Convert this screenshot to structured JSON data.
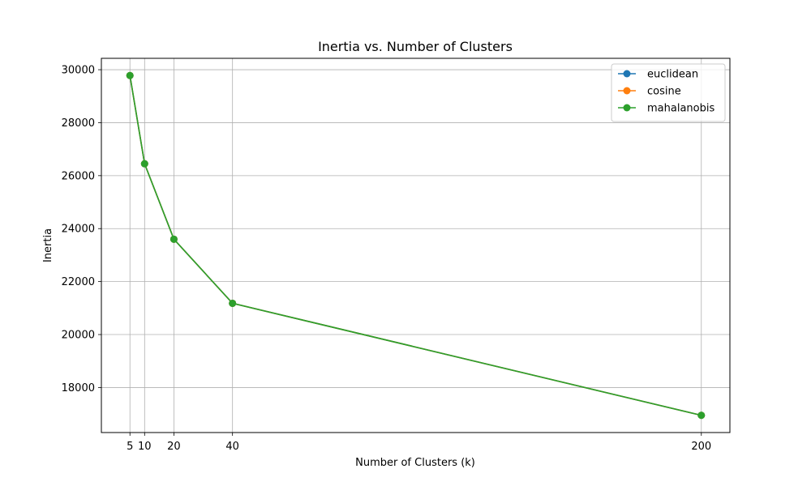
{
  "chart_data": {
    "type": "line",
    "title": "Inertia vs. Number of Clusters",
    "xlabel": "Number of Clusters (k)",
    "ylabel": "Inertia",
    "x": [
      5,
      10,
      20,
      40,
      200
    ],
    "xticks": [
      5,
      10,
      20,
      40,
      200
    ],
    "yticks": [
      18000,
      20000,
      22000,
      24000,
      26000,
      28000,
      30000
    ],
    "xlim": [
      -4.75,
      209.75
    ],
    "ylim": [
      16300,
      30430
    ],
    "grid": true,
    "legend_position": "top-right",
    "series": [
      {
        "name": "euclidean",
        "color": "#1f77b4",
        "marker": "circle",
        "values": [
          29780,
          26450,
          23600,
          21180,
          16950
        ]
      },
      {
        "name": "cosine",
        "color": "#ff7f0e",
        "marker": "circle",
        "values": [
          29780,
          26450,
          23600,
          21180,
          16950
        ]
      },
      {
        "name": "mahalanobis",
        "color": "#2ca02c",
        "marker": "circle",
        "values": [
          29780,
          26450,
          23600,
          21180,
          16950
        ]
      }
    ]
  }
}
